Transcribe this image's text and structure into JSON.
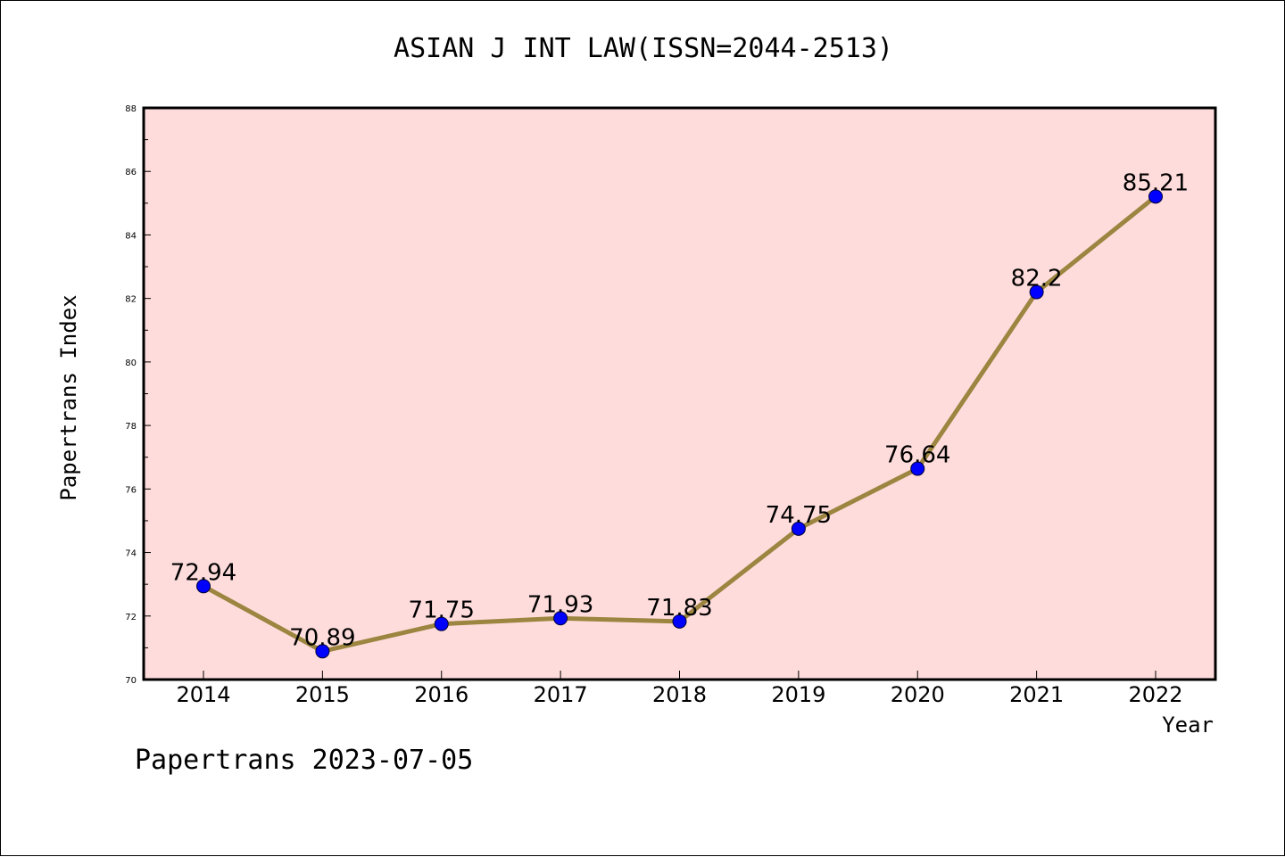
{
  "chart_data": {
    "type": "line",
    "title": "ASIAN J INT LAW(ISSN=2044-2513)",
    "xlabel": "Year",
    "ylabel": "Papertrans Index",
    "x": [
      "2014",
      "2015",
      "2016",
      "2017",
      "2018",
      "2019",
      "2020",
      "2021",
      "2022"
    ],
    "values": [
      72.94,
      70.89,
      71.75,
      71.93,
      71.83,
      74.75,
      76.64,
      82.2,
      85.21
    ],
    "data_labels": [
      "72.94",
      "70.89",
      "71.75",
      "71.93",
      "71.83",
      "74.75",
      "76.64",
      "82.2",
      "85.21"
    ],
    "ylim": [
      70,
      88
    ],
    "yticks": [
      70,
      72,
      74,
      76,
      78,
      80,
      82,
      84,
      86,
      88
    ],
    "grid": false,
    "legend": "none",
    "colors": {
      "plot_background": "#ffdcdc",
      "line": "#9c8540",
      "marker": "#0000ff"
    }
  },
  "footer": {
    "note": "Papertrans 2023-07-05"
  }
}
